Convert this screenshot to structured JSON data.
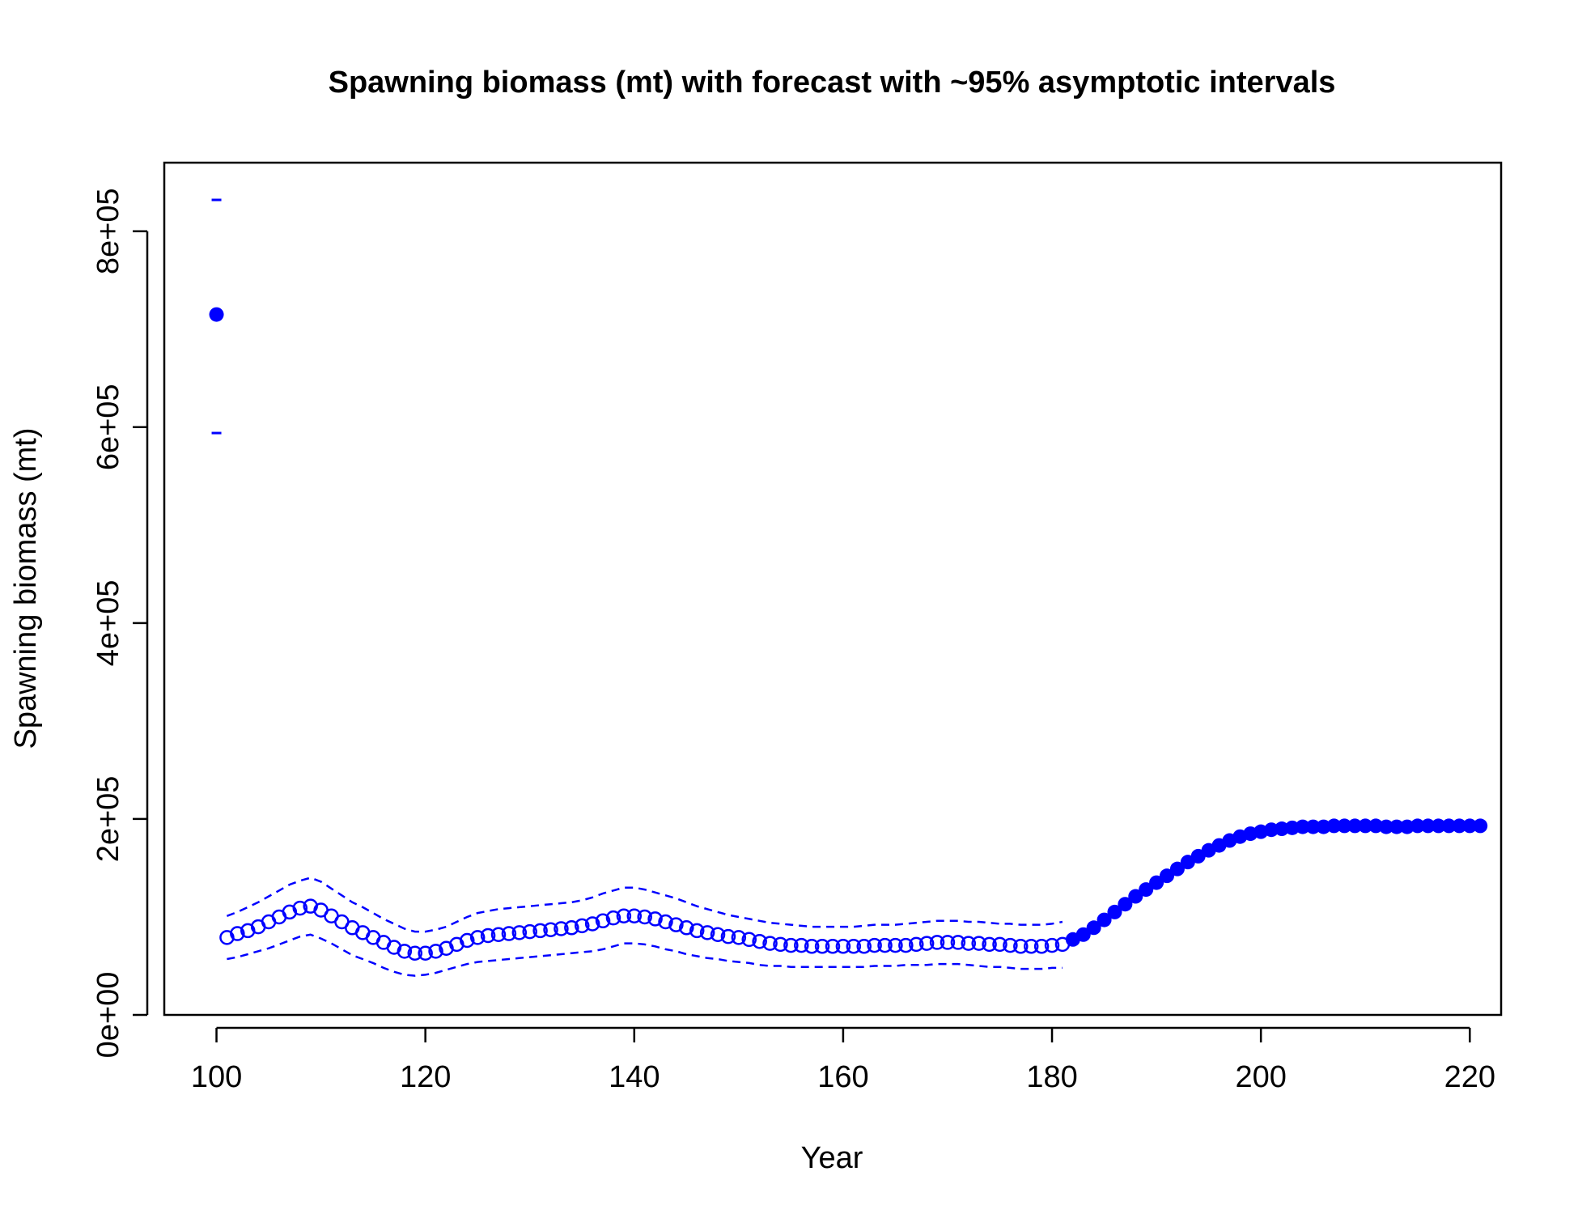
{
  "chart_data": {
    "type": "scatter",
    "title": "Spawning biomass (mt) with forecast with ~95% asymptotic intervals",
    "xlabel": "Year",
    "ylabel": "Spawning biomass (mt)",
    "xlim": [
      95,
      223
    ],
    "ylim": [
      0,
      870000
    ],
    "x_ticks": [
      100,
      120,
      140,
      160,
      180,
      200,
      220
    ],
    "x_tick_labels": [
      "100",
      "120",
      "140",
      "160",
      "180",
      "200",
      "220"
    ],
    "y_ticks": [
      0,
      200000,
      400000,
      600000,
      800000
    ],
    "y_tick_labels": [
      "0e+00",
      "2e+05",
      "4e+05",
      "6e+05",
      "8e+05"
    ],
    "color": "#0000ff",
    "virgin": {
      "x": 100,
      "y": 715000,
      "lower": 594000,
      "upper": 832000
    },
    "estimated": {
      "x": [
        101,
        102,
        103,
        104,
        105,
        106,
        107,
        108,
        109,
        110,
        111,
        112,
        113,
        114,
        115,
        116,
        117,
        118,
        119,
        120,
        121,
        122,
        123,
        124,
        125,
        126,
        127,
        128,
        129,
        130,
        131,
        132,
        133,
        134,
        135,
        136,
        137,
        138,
        139,
        140,
        141,
        142,
        143,
        144,
        145,
        146,
        147,
        148,
        149,
        150,
        151,
        152,
        153,
        154,
        155,
        156,
        157,
        158,
        159,
        160,
        161,
        162,
        163,
        164,
        165,
        166,
        167,
        168,
        169,
        170,
        171,
        172,
        173,
        174,
        175,
        176,
        177,
        178,
        179,
        180,
        181
      ],
      "y": [
        79000,
        83000,
        86000,
        90000,
        95000,
        100000,
        105000,
        109000,
        111000,
        107000,
        101000,
        95000,
        89000,
        84000,
        79000,
        74000,
        69000,
        65000,
        63000,
        63000,
        65000,
        68000,
        72000,
        76000,
        79000,
        81000,
        82000,
        83000,
        84000,
        85000,
        86000,
        87000,
        88000,
        89000,
        91000,
        93000,
        96000,
        99000,
        101000,
        101000,
        100000,
        98000,
        95000,
        92000,
        89000,
        86000,
        84000,
        82000,
        80000,
        79000,
        77000,
        75000,
        73000,
        72000,
        71000,
        71000,
        70000,
        70000,
        70000,
        70000,
        70000,
        70000,
        71000,
        71000,
        71000,
        71000,
        72000,
        73000,
        74000,
        74000,
        74000,
        73000,
        73000,
        72000,
        72000,
        71000,
        70000,
        70000,
        70000,
        71000,
        72000
      ],
      "lower": [
        57000,
        59000,
        62000,
        65000,
        68000,
        72000,
        76000,
        80000,
        82000,
        78000,
        73000,
        67000,
        61000,
        57000,
        53000,
        48000,
        44000,
        41000,
        40000,
        41000,
        43000,
        46000,
        49000,
        52000,
        54000,
        55000,
        56000,
        57000,
        58000,
        59000,
        60000,
        61000,
        62000,
        63000,
        64000,
        65000,
        67000,
        70000,
        73000,
        73000,
        72000,
        70000,
        67000,
        65000,
        62000,
        60000,
        58000,
        57000,
        55000,
        54000,
        53000,
        51000,
        50000,
        50000,
        49000,
        49000,
        49000,
        49000,
        49000,
        49000,
        49000,
        49000,
        50000,
        50000,
        50000,
        51000,
        51000,
        51000,
        52000,
        52000,
        52000,
        51000,
        50000,
        49000,
        49000,
        48000,
        47000,
        47000,
        47000,
        48000,
        48000
      ],
      "upper": [
        101000,
        105000,
        110000,
        115000,
        121000,
        127000,
        133000,
        137000,
        140000,
        136000,
        129000,
        122000,
        115000,
        110000,
        104000,
        98000,
        93000,
        88000,
        85000,
        85000,
        87000,
        90000,
        95000,
        100000,
        104000,
        106000,
        108000,
        109000,
        110000,
        111000,
        112000,
        113000,
        114000,
        115000,
        117000,
        120000,
        124000,
        127000,
        130000,
        130000,
        128000,
        125000,
        122000,
        119000,
        115000,
        111000,
        108000,
        105000,
        102000,
        100000,
        98000,
        96000,
        94000,
        93000,
        92000,
        91000,
        90000,
        90000,
        90000,
        90000,
        90000,
        91000,
        92000,
        92000,
        92000,
        93000,
        94000,
        95000,
        96000,
        96000,
        96000,
        95000,
        95000,
        94000,
        93000,
        93000,
        92000,
        92000,
        92000,
        93000,
        95000
      ]
    },
    "forecast": {
      "x": [
        182,
        183,
        184,
        185,
        186,
        187,
        188,
        189,
        190,
        191,
        192,
        193,
        194,
        195,
        196,
        197,
        198,
        199,
        200,
        201,
        202,
        203,
        204,
        205,
        206,
        207,
        208,
        209,
        210,
        211,
        212,
        213,
        214,
        215,
        216,
        217,
        218,
        219,
        220,
        221
      ],
      "y": [
        77000,
        82000,
        89000,
        97000,
        105000,
        113000,
        121000,
        128000,
        135000,
        142000,
        149000,
        156000,
        162000,
        168000,
        173000,
        178000,
        182000,
        185000,
        187000,
        189000,
        190000,
        191000,
        192000,
        192000,
        192000,
        193000,
        193000,
        193000,
        193000,
        193000,
        192000,
        192000,
        192000,
        193000,
        193000,
        193000,
        193000,
        193000,
        193000,
        193000
      ]
    }
  }
}
